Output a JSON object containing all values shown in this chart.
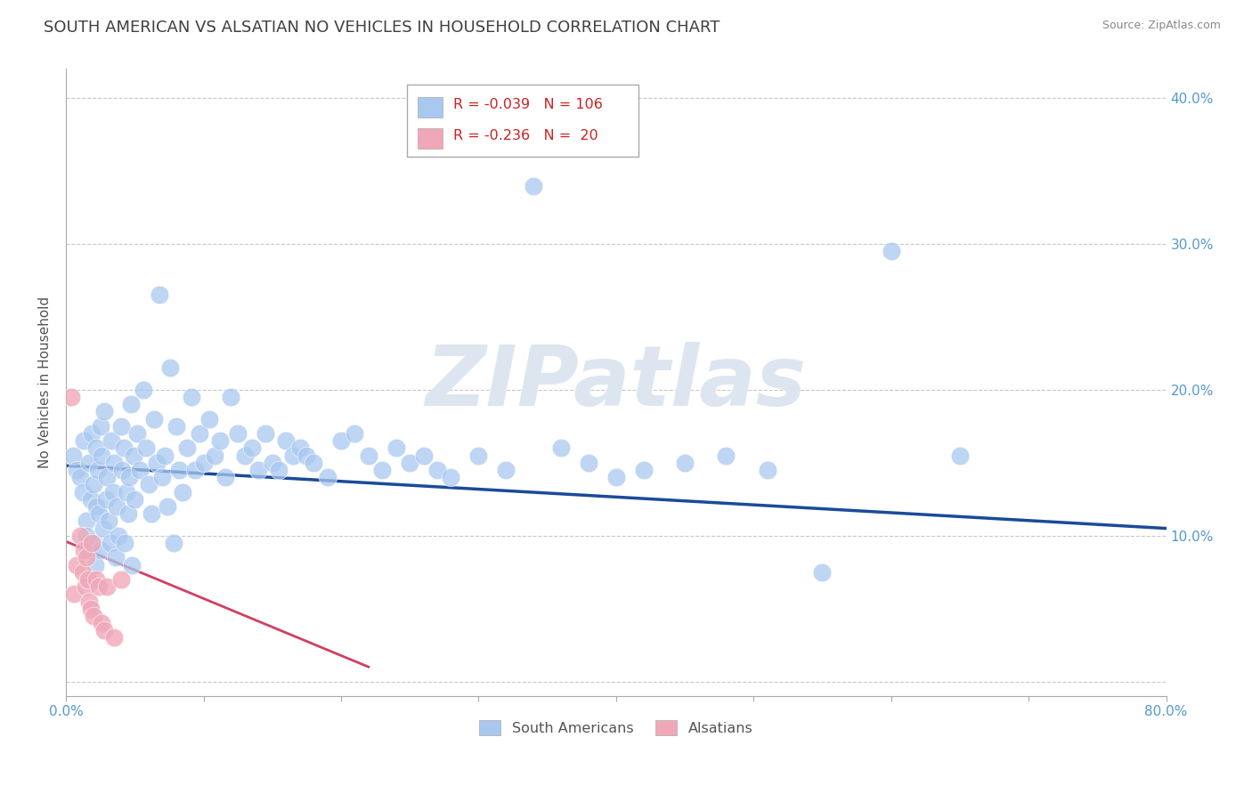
{
  "title": "SOUTH AMERICAN VS ALSATIAN NO VEHICLES IN HOUSEHOLD CORRELATION CHART",
  "source_text": "Source: ZipAtlas.com",
  "ylabel": "No Vehicles in Household",
  "xlim": [
    0.0,
    0.8
  ],
  "ylim": [
    -0.01,
    0.42
  ],
  "xtick_positions": [
    0.0,
    0.1,
    0.2,
    0.3,
    0.4,
    0.5,
    0.6,
    0.7,
    0.8
  ],
  "xticklabels": [
    "0.0%",
    "",
    "",
    "",
    "",
    "",
    "",
    "",
    "80.0%"
  ],
  "ytick_positions": [
    0.0,
    0.1,
    0.2,
    0.3,
    0.4
  ],
  "yticklabels": [
    "",
    "10.0%",
    "20.0%",
    "30.0%",
    "40.0%"
  ],
  "grid_color": "#c8c8c8",
  "background_color": "#ffffff",
  "title_color": "#404040",
  "axis_tick_color": "#5599cc",
  "watermark_text": "ZIPatlas",
  "watermark_color": "#dde6f0",
  "legend_R1": "-0.039",
  "legend_N1": "106",
  "legend_R2": "-0.236",
  "legend_N2": "20",
  "color_blue": "#a8c8f0",
  "color_pink": "#f0a8b8",
  "line_color_blue": "#1a4a9a",
  "line_color_pink": "#d04060",
  "blue_line_x0": 0.0,
  "blue_line_y0": 0.148,
  "blue_line_x1": 0.8,
  "blue_line_y1": 0.105,
  "pink_line_x0": 0.0,
  "pink_line_y0": 0.096,
  "pink_line_x1": 0.22,
  "pink_line_y1": 0.01,
  "south_american_x": [
    0.005,
    0.008,
    0.01,
    0.012,
    0.013,
    0.015,
    0.015,
    0.016,
    0.017,
    0.018,
    0.019,
    0.02,
    0.02,
    0.021,
    0.022,
    0.022,
    0.023,
    0.024,
    0.025,
    0.025,
    0.026,
    0.027,
    0.028,
    0.029,
    0.03,
    0.031,
    0.032,
    0.033,
    0.034,
    0.035,
    0.036,
    0.037,
    0.038,
    0.04,
    0.041,
    0.042,
    0.043,
    0.044,
    0.045,
    0.046,
    0.047,
    0.048,
    0.049,
    0.05,
    0.052,
    0.054,
    0.056,
    0.058,
    0.06,
    0.062,
    0.064,
    0.066,
    0.068,
    0.07,
    0.072,
    0.074,
    0.076,
    0.078,
    0.08,
    0.082,
    0.085,
    0.088,
    0.091,
    0.094,
    0.097,
    0.1,
    0.104,
    0.108,
    0.112,
    0.116,
    0.12,
    0.125,
    0.13,
    0.135,
    0.14,
    0.145,
    0.15,
    0.155,
    0.16,
    0.165,
    0.17,
    0.175,
    0.18,
    0.19,
    0.2,
    0.21,
    0.22,
    0.23,
    0.24,
    0.25,
    0.26,
    0.27,
    0.28,
    0.3,
    0.32,
    0.34,
    0.36,
    0.38,
    0.4,
    0.42,
    0.45,
    0.48,
    0.51,
    0.55,
    0.6,
    0.65
  ],
  "south_american_y": [
    0.155,
    0.145,
    0.14,
    0.13,
    0.165,
    0.11,
    0.1,
    0.09,
    0.15,
    0.125,
    0.17,
    0.095,
    0.135,
    0.08,
    0.12,
    0.16,
    0.145,
    0.115,
    0.175,
    0.09,
    0.155,
    0.105,
    0.185,
    0.125,
    0.14,
    0.11,
    0.095,
    0.165,
    0.13,
    0.15,
    0.085,
    0.12,
    0.1,
    0.175,
    0.145,
    0.16,
    0.095,
    0.13,
    0.115,
    0.14,
    0.19,
    0.08,
    0.155,
    0.125,
    0.17,
    0.145,
    0.2,
    0.16,
    0.135,
    0.115,
    0.18,
    0.15,
    0.265,
    0.14,
    0.155,
    0.12,
    0.215,
    0.095,
    0.175,
    0.145,
    0.13,
    0.16,
    0.195,
    0.145,
    0.17,
    0.15,
    0.18,
    0.155,
    0.165,
    0.14,
    0.195,
    0.17,
    0.155,
    0.16,
    0.145,
    0.17,
    0.15,
    0.145,
    0.165,
    0.155,
    0.16,
    0.155,
    0.15,
    0.14,
    0.165,
    0.17,
    0.155,
    0.145,
    0.16,
    0.15,
    0.155,
    0.145,
    0.14,
    0.155,
    0.145,
    0.34,
    0.16,
    0.15,
    0.14,
    0.145,
    0.15,
    0.155,
    0.145,
    0.075,
    0.295,
    0.155
  ],
  "alsatian_x": [
    0.004,
    0.006,
    0.008,
    0.01,
    0.012,
    0.013,
    0.014,
    0.015,
    0.016,
    0.017,
    0.018,
    0.019,
    0.02,
    0.022,
    0.024,
    0.026,
    0.028,
    0.03,
    0.035,
    0.04
  ],
  "alsatian_y": [
    0.195,
    0.06,
    0.08,
    0.1,
    0.075,
    0.09,
    0.065,
    0.085,
    0.07,
    0.055,
    0.05,
    0.095,
    0.045,
    0.07,
    0.065,
    0.04,
    0.035,
    0.065,
    0.03,
    0.07
  ]
}
